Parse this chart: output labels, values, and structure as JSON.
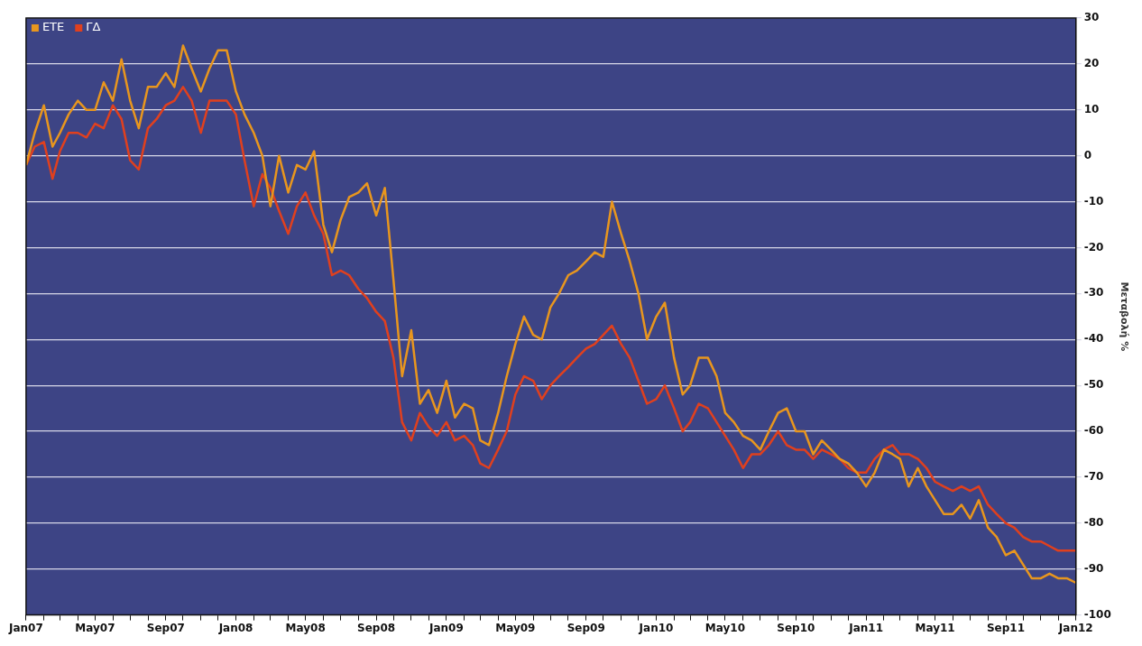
{
  "chart_data": {
    "type": "line",
    "ylabel": "Μεταβολή %",
    "x": [
      "2007-01-01",
      "2007-01-16",
      "2007-02-01",
      "2007-02-16",
      "2007-03-01",
      "2007-03-16",
      "2007-04-01",
      "2007-04-16",
      "2007-05-01",
      "2007-05-16",
      "2007-06-01",
      "2007-06-16",
      "2007-07-01",
      "2007-07-16",
      "2007-08-01",
      "2007-08-16",
      "2007-09-01",
      "2007-09-16",
      "2007-10-01",
      "2007-10-16",
      "2007-11-01",
      "2007-11-16",
      "2007-12-01",
      "2007-12-16",
      "2008-01-01",
      "2008-01-16",
      "2008-02-01",
      "2008-02-16",
      "2008-03-01",
      "2008-03-16",
      "2008-04-01",
      "2008-04-16",
      "2008-05-01",
      "2008-05-16",
      "2008-06-01",
      "2008-06-16",
      "2008-07-01",
      "2008-07-16",
      "2008-08-01",
      "2008-08-16",
      "2008-09-01",
      "2008-09-16",
      "2008-10-01",
      "2008-10-16",
      "2008-11-01",
      "2008-11-16",
      "2008-12-01",
      "2008-12-16",
      "2009-01-01",
      "2009-01-16",
      "2009-02-01",
      "2009-02-16",
      "2009-03-01",
      "2009-03-16",
      "2009-04-01",
      "2009-04-16",
      "2009-05-01",
      "2009-05-16",
      "2009-06-01",
      "2009-06-16",
      "2009-07-01",
      "2009-07-16",
      "2009-08-01",
      "2009-08-16",
      "2009-09-01",
      "2009-09-16",
      "2009-10-01",
      "2009-10-16",
      "2009-11-01",
      "2009-11-16",
      "2009-12-01",
      "2009-12-16",
      "2010-01-01",
      "2010-01-16",
      "2010-02-01",
      "2010-02-16",
      "2010-03-01",
      "2010-03-16",
      "2010-04-01",
      "2010-04-16",
      "2010-05-01",
      "2010-05-16",
      "2010-06-01",
      "2010-06-16",
      "2010-07-01",
      "2010-07-16",
      "2010-08-01",
      "2010-08-16",
      "2010-09-01",
      "2010-09-16",
      "2010-10-01",
      "2010-10-16",
      "2010-11-01",
      "2010-11-16",
      "2010-12-01",
      "2010-12-16",
      "2011-01-01",
      "2011-01-16",
      "2011-02-01",
      "2011-02-16",
      "2011-03-01",
      "2011-03-16",
      "2011-04-01",
      "2011-04-16",
      "2011-05-01",
      "2011-05-16",
      "2011-06-01",
      "2011-06-16",
      "2011-07-01",
      "2011-07-16",
      "2011-08-01",
      "2011-08-16",
      "2011-09-01",
      "2011-09-16",
      "2011-10-01",
      "2011-10-16",
      "2011-11-01",
      "2011-11-16",
      "2011-12-01",
      "2011-12-16",
      "2012-01-01"
    ],
    "series": [
      {
        "name": "ΕΤΕ",
        "color": "#e8961e",
        "values": [
          -2,
          5,
          11,
          2,
          5,
          9,
          12,
          10,
          10,
          16,
          12,
          21,
          12,
          6,
          15,
          15,
          18,
          15,
          24,
          19,
          14,
          19,
          23,
          23,
          14,
          9,
          5,
          0,
          -11,
          0,
          -8,
          -2,
          -3,
          1,
          -15,
          -21,
          -14,
          -9,
          -8,
          -6,
          -13,
          -7,
          -27,
          -48,
          -38,
          -54,
          -51,
          -56,
          -49,
          -57,
          -54,
          -55,
          -62,
          -63,
          -56,
          -48,
          -41,
          -35,
          -39,
          -40,
          -33,
          -30,
          -26,
          -25,
          -23,
          -21,
          -22,
          -10,
          -17,
          -23,
          -30,
          -40,
          -35,
          -32,
          -44,
          -52,
          -50,
          -44,
          -44,
          -48,
          -56,
          -58,
          -61,
          -62,
          -64,
          -60,
          -56,
          -55,
          -60,
          -60,
          -65,
          -62,
          -64,
          -66,
          -67,
          -69,
          -72,
          -69,
          -64,
          -65,
          -66,
          -72,
          -68,
          -72,
          -75,
          -78,
          -78,
          -76,
          -79,
          -75,
          -81,
          -83,
          -87,
          -86,
          -89,
          -92,
          -92,
          -91,
          -92,
          -92,
          -93
        ]
      },
      {
        "name": "ΓΔ",
        "color": "#e0401e",
        "values": [
          -2,
          2,
          3,
          -5,
          1,
          5,
          5,
          4,
          7,
          6,
          11,
          8,
          -1,
          -3,
          6,
          8,
          11,
          12,
          15,
          12,
          5,
          12,
          12,
          12,
          9,
          -1,
          -11,
          -4,
          -7,
          -12,
          -17,
          -11,
          -8,
          -13,
          -17,
          -26,
          -25,
          -26,
          -29,
          -31,
          -34,
          -36,
          -44,
          -58,
          -62,
          -56,
          -59,
          -61,
          -58,
          -62,
          -61,
          -63,
          -67,
          -68,
          -64,
          -60,
          -52,
          -48,
          -49,
          -53,
          -50,
          -48,
          -46,
          -44,
          -42,
          -41,
          -39,
          -37,
          -41,
          -44,
          -49,
          -54,
          -53,
          -50,
          -55,
          -60,
          -58,
          -54,
          -55,
          -58,
          -61,
          -64,
          -68,
          -65,
          -65,
          -63,
          -60,
          -63,
          -64,
          -64,
          -66,
          -64,
          -65,
          -66,
          -68,
          -69,
          -69,
          -66,
          -64,
          -63,
          -65,
          -65,
          -66,
          -68,
          -71,
          -72,
          -73,
          -72,
          -73,
          -72,
          -76,
          -78,
          -80,
          -81,
          -83,
          -84,
          -84,
          -85,
          -86,
          -86,
          -86
        ]
      }
    ],
    "xlim": [
      "2007-01-01",
      "2012-01-01"
    ],
    "xticks": [
      {
        "value": "2007-01-01",
        "label": "Jan07"
      },
      {
        "value": "2007-02-01",
        "label": null
      },
      {
        "value": "2007-03-01",
        "label": null
      },
      {
        "value": "2007-04-01",
        "label": null
      },
      {
        "value": "2007-05-01",
        "label": "May07"
      },
      {
        "value": "2007-06-01",
        "label": null
      },
      {
        "value": "2007-07-01",
        "label": null
      },
      {
        "value": "2007-08-01",
        "label": null
      },
      {
        "value": "2007-09-01",
        "label": "Sep07"
      },
      {
        "value": "2007-10-01",
        "label": null
      },
      {
        "value": "2007-11-01",
        "label": null
      },
      {
        "value": "2007-12-01",
        "label": null
      },
      {
        "value": "2008-01-01",
        "label": "Jan08"
      },
      {
        "value": "2008-02-01",
        "label": null
      },
      {
        "value": "2008-03-01",
        "label": null
      },
      {
        "value": "2008-04-01",
        "label": null
      },
      {
        "value": "2008-05-01",
        "label": "May08"
      },
      {
        "value": "2008-06-01",
        "label": null
      },
      {
        "value": "2008-07-01",
        "label": null
      },
      {
        "value": "2008-08-01",
        "label": null
      },
      {
        "value": "2008-09-01",
        "label": "Sep08"
      },
      {
        "value": "2008-10-01",
        "label": null
      },
      {
        "value": "2008-11-01",
        "label": null
      },
      {
        "value": "2008-12-01",
        "label": null
      },
      {
        "value": "2009-01-01",
        "label": "Jan09"
      },
      {
        "value": "2009-02-01",
        "label": null
      },
      {
        "value": "2009-03-01",
        "label": null
      },
      {
        "value": "2009-04-01",
        "label": null
      },
      {
        "value": "2009-05-01",
        "label": "May09"
      },
      {
        "value": "2009-06-01",
        "label": null
      },
      {
        "value": "2009-07-01",
        "label": null
      },
      {
        "value": "2009-08-01",
        "label": null
      },
      {
        "value": "2009-09-01",
        "label": "Sep09"
      },
      {
        "value": "2009-10-01",
        "label": null
      },
      {
        "value": "2009-11-01",
        "label": null
      },
      {
        "value": "2009-12-01",
        "label": null
      },
      {
        "value": "2010-01-01",
        "label": "Jan10"
      },
      {
        "value": "2010-02-01",
        "label": null
      },
      {
        "value": "2010-03-01",
        "label": null
      },
      {
        "value": "2010-04-01",
        "label": null
      },
      {
        "value": "2010-05-01",
        "label": "May10"
      },
      {
        "value": "2010-06-01",
        "label": null
      },
      {
        "value": "2010-07-01",
        "label": null
      },
      {
        "value": "2010-08-01",
        "label": null
      },
      {
        "value": "2010-09-01",
        "label": "Sep10"
      },
      {
        "value": "2010-10-01",
        "label": null
      },
      {
        "value": "2010-11-01",
        "label": null
      },
      {
        "value": "2010-12-01",
        "label": null
      },
      {
        "value": "2011-01-01",
        "label": "Jan11"
      },
      {
        "value": "2011-02-01",
        "label": null
      },
      {
        "value": "2011-03-01",
        "label": null
      },
      {
        "value": "2011-04-01",
        "label": null
      },
      {
        "value": "2011-05-01",
        "label": "May11"
      },
      {
        "value": "2011-06-01",
        "label": null
      },
      {
        "value": "2011-07-01",
        "label": null
      },
      {
        "value": "2011-08-01",
        "label": null
      },
      {
        "value": "2011-09-01",
        "label": "Sep11"
      },
      {
        "value": "2011-10-01",
        "label": null
      },
      {
        "value": "2011-11-01",
        "label": null
      },
      {
        "value": "2011-12-01",
        "label": null
      },
      {
        "value": "2012-01-01",
        "label": "Jan12"
      }
    ],
    "ylim": [
      -100,
      30
    ],
    "yticks": [
      -100,
      -90,
      -80,
      -70,
      -60,
      -50,
      -40,
      -30,
      -20,
      -10,
      0,
      10,
      20,
      30
    ],
    "grid": "y",
    "legend": "top left",
    "marker": "none",
    "line_style": "solid"
  }
}
